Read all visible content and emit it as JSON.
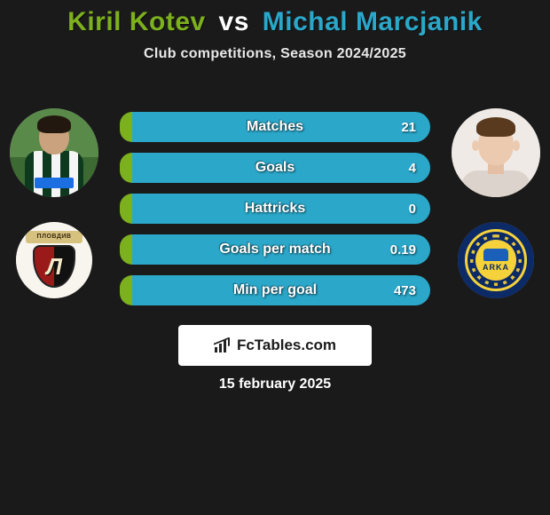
{
  "title": {
    "player1": "Kiril Kotev",
    "vs": "vs",
    "player2": "Michal Marcjanik",
    "player1_color": "#7db01e",
    "vs_color": "#ffffff",
    "player2_color": "#2aa7c9"
  },
  "subtitle": "Club competitions, Season 2024/2025",
  "players": {
    "left": {
      "name": "Kiril Kotev"
    },
    "right": {
      "name": "Michal Marcjanik"
    }
  },
  "clubs": {
    "left": {
      "banner": "ПЛОВДИВ",
      "letter": "Л"
    },
    "right": {
      "text": "ARKA"
    }
  },
  "stats": {
    "left_color": "#7db01e",
    "right_color": "#2aa7c9",
    "rows": [
      {
        "label": "Matches",
        "value": "21",
        "left_pct": 4
      },
      {
        "label": "Goals",
        "value": "4",
        "left_pct": 4
      },
      {
        "label": "Hattricks",
        "value": "0",
        "left_pct": 4
      },
      {
        "label": "Goals per match",
        "value": "0.19",
        "left_pct": 4
      },
      {
        "label": "Min per goal",
        "value": "473",
        "left_pct": 4
      }
    ]
  },
  "brand": {
    "name": "FcTables",
    "domain": ".com"
  },
  "date": "15 february 2025"
}
